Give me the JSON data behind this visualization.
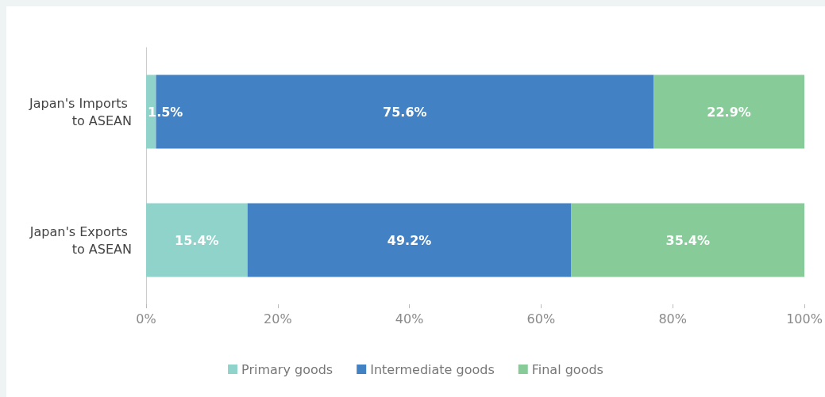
{
  "chart_data": {
    "type": "bar",
    "orientation": "horizontal",
    "stacked": true,
    "categories": [
      "Japan's Imports to ASEAN",
      "Japan's Exports to ASEAN"
    ],
    "series": [
      {
        "name": "Primary goods",
        "color": "#8fd3cb",
        "values": [
          1.5,
          15.4
        ],
        "value_labels": [
          "1.5%",
          "15.4%"
        ]
      },
      {
        "name": "Intermediate goods",
        "color": "#4281c4",
        "values": [
          75.6,
          49.2
        ],
        "value_labels": [
          "75.6%",
          "49.2%"
        ]
      },
      {
        "name": "Final goods",
        "color": "#86cb98",
        "values": [
          22.9,
          35.4
        ],
        "value_labels": [
          "22.9%",
          "35.4%"
        ]
      }
    ],
    "xlim": [
      0,
      100
    ],
    "xticks": [
      {
        "value": 0,
        "label": "0%"
      },
      {
        "value": 20,
        "label": "20%"
      },
      {
        "value": 40,
        "label": "40%"
      },
      {
        "value": 60,
        "label": "60%"
      },
      {
        "value": 80,
        "label": "80%"
      },
      {
        "value": 100,
        "label": "100%"
      }
    ],
    "grid": false,
    "legend": "bottom"
  }
}
